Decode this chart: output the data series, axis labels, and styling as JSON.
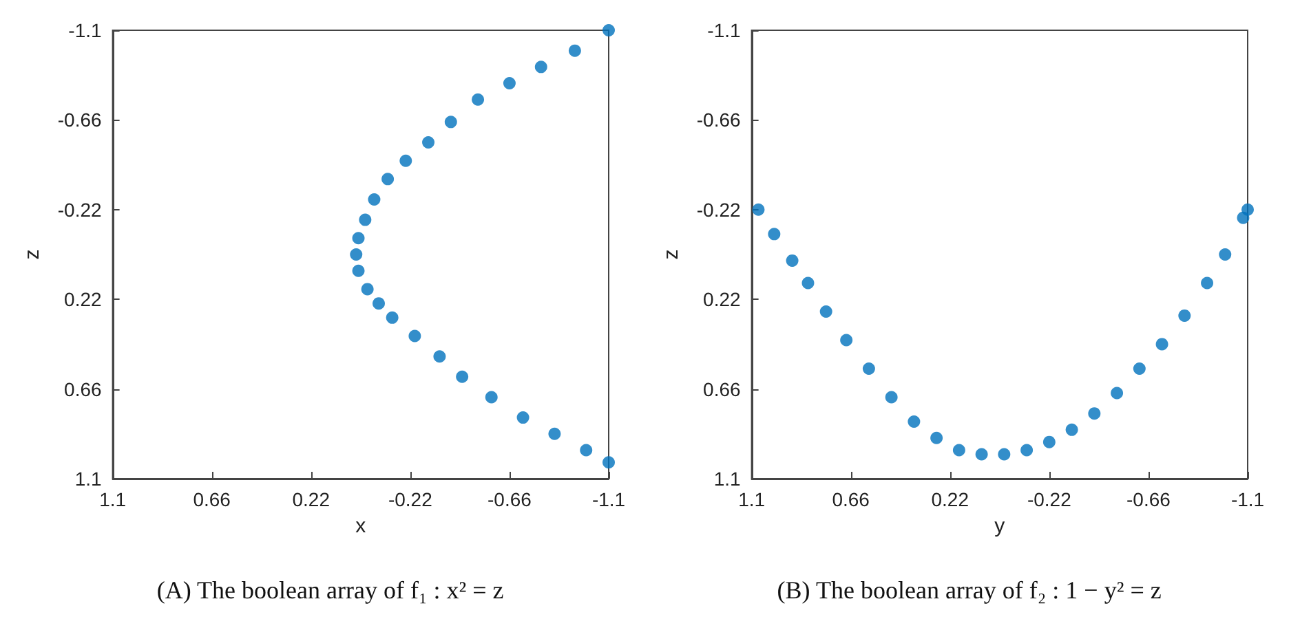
{
  "chart_data": [
    {
      "type": "scatter",
      "xlabel": "x",
      "ylabel": "z",
      "annotations": [
        "(A) The boolean array of f₁ : x² = z"
      ],
      "marker": "circle",
      "grid": false,
      "xlim": [
        1.1,
        -1.1
      ],
      "xticks": [
        1.1,
        0.66,
        0.22,
        -0.22,
        -0.66,
        -1.1
      ],
      "ylim": [
        1.1,
        -1.1
      ],
      "yticks": [
        -1.1,
        -0.66,
        -0.22,
        0.22,
        0.66,
        1.1
      ],
      "series": [
        {
          "color": "#0072bd",
          "x": [
            -1.1,
            -0.95,
            -0.8,
            -0.66,
            -0.52,
            -0.4,
            -0.3,
            -0.2,
            -0.12,
            -0.06,
            -0.02,
            0.01,
            0.02,
            0.01,
            -0.03,
            -0.08,
            -0.14,
            -0.24,
            -0.35,
            -0.45,
            -0.58,
            -0.72,
            -0.86,
            -1.0,
            -1.1
          ],
          "values": [
            -1.1,
            -1.0,
            -0.92,
            -0.84,
            -0.76,
            -0.65,
            -0.55,
            -0.46,
            -0.37,
            -0.27,
            -0.17,
            -0.08,
            0.0,
            0.08,
            0.17,
            0.24,
            0.31,
            0.4,
            0.5,
            0.6,
            0.7,
            0.8,
            0.88,
            0.96,
            1.02
          ]
        }
      ]
    },
    {
      "type": "scatter",
      "xlabel": "y",
      "ylabel": "z",
      "annotations": [
        "(B) The boolean array of f₂ : 1 − y² = z"
      ],
      "marker": "circle",
      "grid": false,
      "xlim": [
        1.1,
        -1.1
      ],
      "xticks": [
        1.1,
        0.66,
        0.22,
        -0.22,
        -0.66,
        -1.1
      ],
      "ylim": [
        1.1,
        -1.1
      ],
      "yticks": [
        -1.1,
        -0.66,
        -0.22,
        0.22,
        0.66,
        1.1
      ],
      "series": [
        {
          "color": "#0072bd",
          "x": [
            1.07,
            1.0,
            0.92,
            0.85,
            0.77,
            0.68,
            0.58,
            0.48,
            0.38,
            0.28,
            0.18,
            0.08,
            -0.02,
            -0.12,
            -0.22,
            -0.32,
            -0.42,
            -0.52,
            -0.62,
            -0.72,
            -0.82,
            -0.92,
            -1.0,
            -1.08,
            -1.1
          ],
          "values": [
            -0.22,
            -0.1,
            0.03,
            0.14,
            0.28,
            0.42,
            0.56,
            0.7,
            0.82,
            0.9,
            0.96,
            0.98,
            0.98,
            0.96,
            0.92,
            0.86,
            0.78,
            0.68,
            0.56,
            0.44,
            0.3,
            0.14,
            0.0,
            -0.18,
            -0.22
          ]
        }
      ]
    }
  ]
}
